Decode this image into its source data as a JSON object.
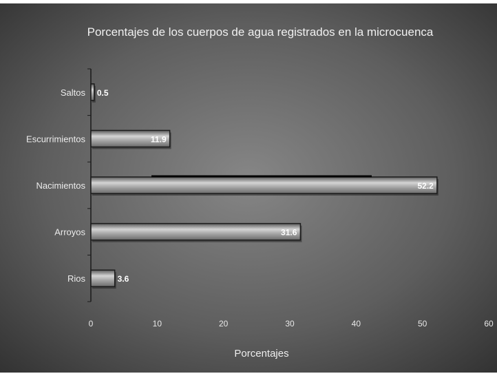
{
  "chart_data": {
    "type": "bar",
    "orientation": "horizontal",
    "title": "Porcentajes de los cuerpos de agua registrados en la microcuenca",
    "xlabel": "Porcentajes",
    "ylabel": "",
    "categories": [
      "Saltos",
      "Escurrimientos",
      "Nacimientos",
      "Arroyos",
      "Rios"
    ],
    "values": [
      0.5,
      11.9,
      52.2,
      31.6,
      3.6
    ],
    "value_labels": [
      "0.5",
      "11.9",
      "52.2",
      "31.6",
      "3.6"
    ],
    "xlim": [
      0,
      60
    ],
    "xticks": [
      0,
      10,
      20,
      30,
      40,
      50,
      60
    ],
    "grid": false,
    "legend": "none",
    "colors": {
      "bar_fill": "#9a9a9a",
      "bar_highlight": "#d2d2d2",
      "bar_edge": "#1c1c1c",
      "text": "#f2f2f2",
      "background_center": "#7c7c7c",
      "background_edge": "#2f2f2f"
    }
  }
}
